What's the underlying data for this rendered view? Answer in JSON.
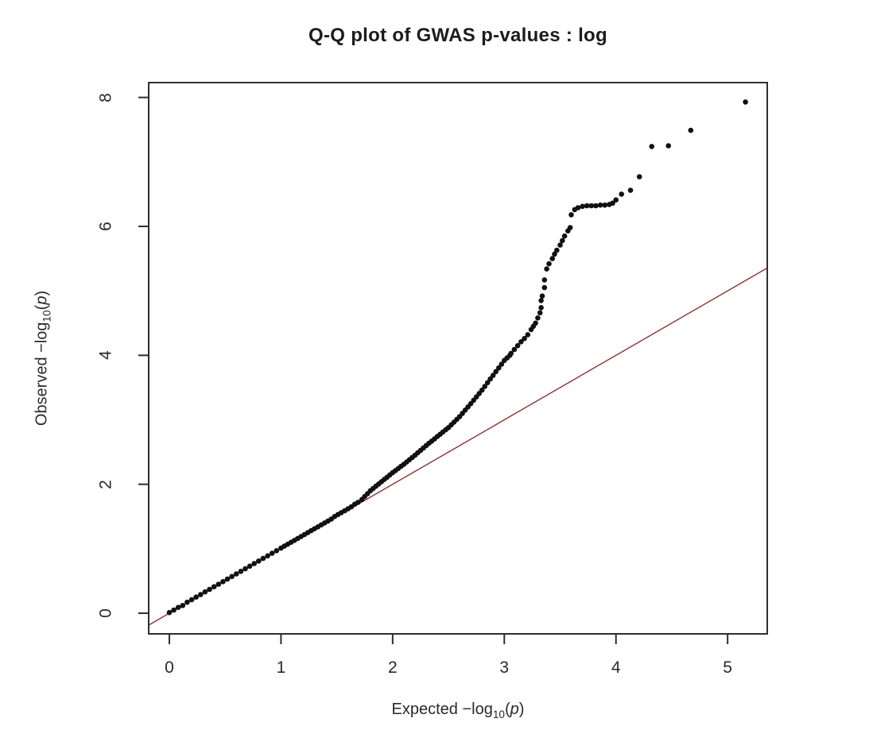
{
  "figure": {
    "title": "Q-Q plot of GWAS p-values : log",
    "background_color": "#ffffff",
    "frame_color": "#2e2e2e",
    "text_color": "#2a2a2a"
  },
  "axes": {
    "x": {
      "label_prefix": "Expected ",
      "label_fn": "−log",
      "label_sub": "10",
      "paren_open": "(",
      "var": "p",
      "paren_close": ")"
    },
    "y": {
      "label_prefix": "Observed ",
      "label_fn": "−log",
      "label_sub": "10",
      "paren_open": "(",
      "var": "p",
      "paren_close": ")"
    }
  },
  "chart_data": {
    "type": "scatter",
    "title": "Q-Q plot of GWAS p-values : log",
    "xlabel": "Expected −log10(p)",
    "ylabel": "Observed −log10(p)",
    "xlim": [
      -0.185,
      5.355
    ],
    "ylim": [
      -0.32,
      8.23
    ],
    "x_ticks": [
      0,
      1,
      2,
      3,
      4,
      5
    ],
    "y_ticks": [
      0,
      2,
      4,
      6,
      8
    ],
    "grid": false,
    "legend": "none",
    "point_color": "#111111",
    "point_radius": 3.3,
    "frame_color": "#2e2e2e",
    "reference_line": {
      "type": "identity",
      "from": [
        -0.185,
        -0.185
      ],
      "to": [
        5.355,
        5.355
      ],
      "color": "#8b3333",
      "width": 1.4
    },
    "points": [
      [
        0.0,
        0.01
      ],
      [
        0.04,
        0.05
      ],
      [
        0.08,
        0.09
      ],
      [
        0.12,
        0.12
      ],
      [
        0.16,
        0.17
      ],
      [
        0.2,
        0.21
      ],
      [
        0.24,
        0.25
      ],
      [
        0.28,
        0.29
      ],
      [
        0.32,
        0.33
      ],
      [
        0.36,
        0.37
      ],
      [
        0.4,
        0.41
      ],
      [
        0.44,
        0.45
      ],
      [
        0.48,
        0.49
      ],
      [
        0.52,
        0.53
      ],
      [
        0.56,
        0.57
      ],
      [
        0.6,
        0.61
      ],
      [
        0.64,
        0.65
      ],
      [
        0.68,
        0.69
      ],
      [
        0.72,
        0.73
      ],
      [
        0.76,
        0.77
      ],
      [
        0.8,
        0.81
      ],
      [
        0.84,
        0.85
      ],
      [
        0.88,
        0.89
      ],
      [
        0.92,
        0.93
      ],
      [
        0.96,
        0.97
      ],
      [
        1.0,
        1.01
      ],
      [
        1.03,
        1.04
      ],
      [
        1.06,
        1.07
      ],
      [
        1.09,
        1.1
      ],
      [
        1.12,
        1.13
      ],
      [
        1.15,
        1.16
      ],
      [
        1.18,
        1.19
      ],
      [
        1.21,
        1.22
      ],
      [
        1.24,
        1.25
      ],
      [
        1.27,
        1.28
      ],
      [
        1.3,
        1.31
      ],
      [
        1.33,
        1.34
      ],
      [
        1.36,
        1.37
      ],
      [
        1.39,
        1.4
      ],
      [
        1.42,
        1.43
      ],
      [
        1.45,
        1.46
      ],
      [
        1.48,
        1.5
      ],
      [
        1.51,
        1.53
      ],
      [
        1.54,
        1.56
      ],
      [
        1.57,
        1.59
      ],
      [
        1.6,
        1.62
      ],
      [
        1.63,
        1.65
      ],
      [
        1.66,
        1.69
      ],
      [
        1.69,
        1.72
      ],
      [
        1.725,
        1.765
      ],
      [
        1.75,
        1.81
      ],
      [
        1.775,
        1.855
      ],
      [
        1.8,
        1.9
      ],
      [
        1.825,
        1.935
      ],
      [
        1.85,
        1.97
      ],
      [
        1.875,
        2.005
      ],
      [
        1.9,
        2.04
      ],
      [
        1.925,
        2.075
      ],
      [
        1.95,
        2.11
      ],
      [
        1.975,
        2.145
      ],
      [
        2.0,
        2.18
      ],
      [
        2.025,
        2.213
      ],
      [
        2.05,
        2.245
      ],
      [
        2.075,
        2.278
      ],
      [
        2.1,
        2.31
      ],
      [
        2.125,
        2.345
      ],
      [
        2.15,
        2.38
      ],
      [
        2.175,
        2.415
      ],
      [
        2.2,
        2.45
      ],
      [
        2.225,
        2.488
      ],
      [
        2.25,
        2.525
      ],
      [
        2.275,
        2.563
      ],
      [
        2.3,
        2.6
      ],
      [
        2.325,
        2.635
      ],
      [
        2.35,
        2.67
      ],
      [
        2.375,
        2.705
      ],
      [
        2.4,
        2.74
      ],
      [
        2.425,
        2.775
      ],
      [
        2.45,
        2.81
      ],
      [
        2.475,
        2.845
      ],
      [
        2.5,
        2.88
      ],
      [
        2.525,
        2.923
      ],
      [
        2.55,
        2.965
      ],
      [
        2.575,
        3.008
      ],
      [
        2.6,
        3.05
      ],
      [
        2.625,
        3.1
      ],
      [
        2.65,
        3.15
      ],
      [
        2.675,
        3.2
      ],
      [
        2.7,
        3.25
      ],
      [
        2.725,
        3.303
      ],
      [
        2.75,
        3.355
      ],
      [
        2.775,
        3.408
      ],
      [
        2.8,
        3.46
      ],
      [
        2.825,
        3.518
      ],
      [
        2.85,
        3.575
      ],
      [
        2.875,
        3.633
      ],
      [
        2.9,
        3.69
      ],
      [
        2.925,
        3.748
      ],
      [
        2.95,
        3.805
      ],
      [
        2.975,
        3.863
      ],
      [
        3.0,
        3.92
      ],
      [
        3.025,
        3.96
      ],
      [
        3.05,
        4.0
      ],
      [
        3.06,
        4.03
      ],
      [
        3.09,
        4.09
      ],
      [
        3.12,
        4.15
      ],
      [
        3.15,
        4.21
      ],
      [
        3.18,
        4.26
      ],
      [
        3.21,
        4.32
      ],
      [
        3.24,
        4.4
      ],
      [
        3.26,
        4.45
      ],
      [
        3.28,
        4.5
      ],
      [
        3.3,
        4.58
      ],
      [
        3.32,
        4.66
      ],
      [
        3.33,
        4.74
      ],
      [
        3.33,
        4.85
      ],
      [
        3.34,
        4.92
      ],
      [
        3.36,
        5.05
      ],
      [
        3.36,
        5.17
      ],
      [
        3.38,
        5.34
      ],
      [
        3.4,
        5.42
      ],
      [
        3.43,
        5.5
      ],
      [
        3.45,
        5.57
      ],
      [
        3.47,
        5.63
      ],
      [
        3.5,
        5.71
      ],
      [
        3.52,
        5.78
      ],
      [
        3.54,
        5.85
      ],
      [
        3.57,
        5.93
      ],
      [
        3.59,
        5.98
      ],
      [
        3.6,
        6.18
      ],
      [
        3.63,
        6.26
      ],
      [
        3.66,
        6.29
      ],
      [
        3.7,
        6.31
      ],
      [
        3.74,
        6.32
      ],
      [
        3.78,
        6.32
      ],
      [
        3.82,
        6.32
      ],
      [
        3.86,
        6.33
      ],
      [
        3.9,
        6.33
      ],
      [
        3.94,
        6.34
      ],
      [
        3.97,
        6.36
      ],
      [
        4.0,
        6.41
      ],
      [
        4.05,
        6.5
      ],
      [
        4.13,
        6.56
      ],
      [
        4.21,
        6.77
      ],
      [
        4.32,
        7.24
      ],
      [
        4.47,
        7.25
      ],
      [
        4.67,
        7.49
      ],
      [
        5.16,
        7.93
      ]
    ]
  }
}
